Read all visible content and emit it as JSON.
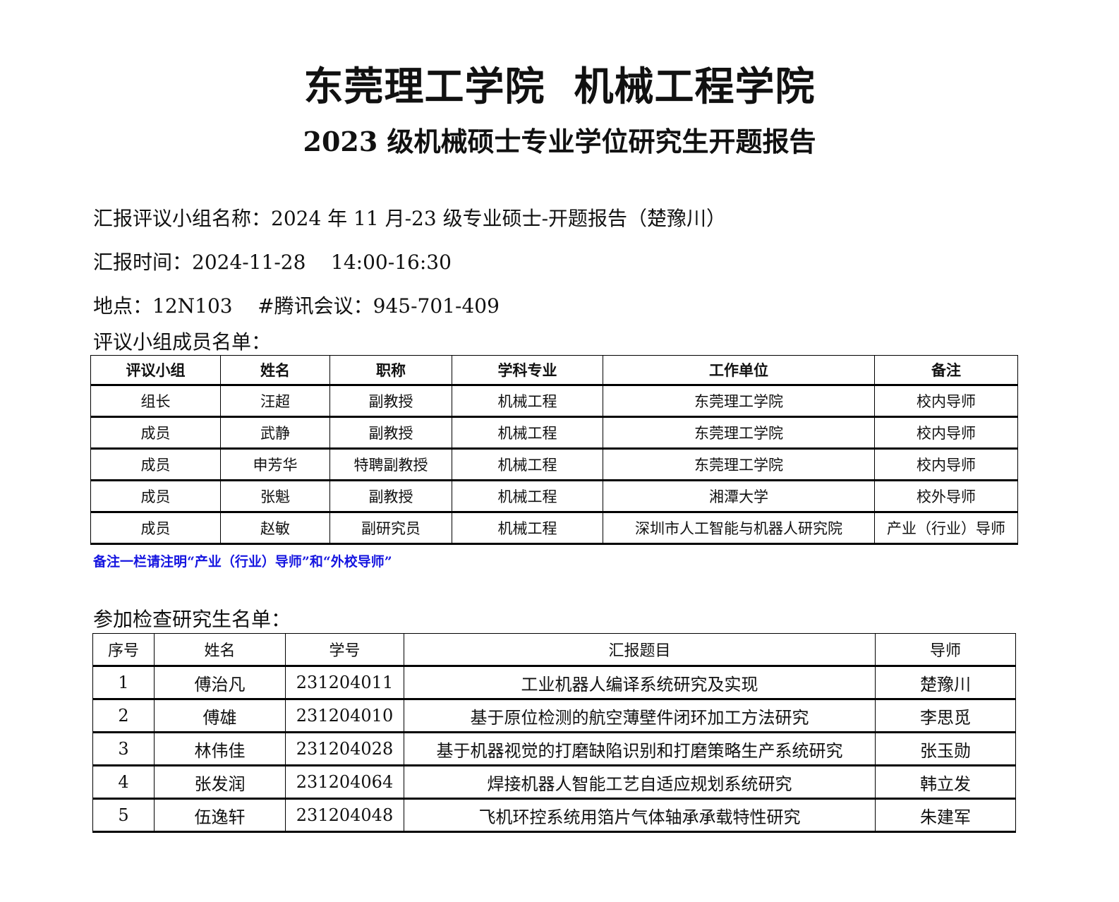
{
  "header": {
    "title": "东莞理工学院  机械工程学院",
    "subtitle": "2023 级机械硕士专业学位研究生开题报告"
  },
  "info": {
    "group_name": "汇报评议小组名称：2024 年 11 月-23 级专业硕士-开题报告（楚豫川）",
    "time": "汇报时间：2024-11-28    14:00-16:30",
    "location": "地点：12N103    #腾讯会议：945-701-409",
    "panel_heading": "评议小组成员名单：",
    "note": "备注一栏请注明“产业（行业）导师”和“外校导师”",
    "students_heading": "参加检查研究生名单："
  },
  "panel": {
    "headers": [
      "评议小组",
      "姓名",
      "职称",
      "学科专业",
      "工作单位",
      "备注"
    ],
    "rows": [
      [
        "组长",
        "汪超",
        "副教授",
        "机械工程",
        "东莞理工学院",
        "校内导师"
      ],
      [
        "成员",
        "武静",
        "副教授",
        "机械工程",
        "东莞理工学院",
        "校内导师"
      ],
      [
        "成员",
        "申芳华",
        "特聘副教授",
        "机械工程",
        "东莞理工学院",
        "校内导师"
      ],
      [
        "成员",
        "张魁",
        "副教授",
        "机械工程",
        "湘潭大学",
        "校外导师"
      ],
      [
        "成员",
        "赵敏",
        "副研究员",
        "机械工程",
        "深圳市人工智能与机器人研究院",
        "产业（行业）导师"
      ]
    ]
  },
  "students": {
    "headers": [
      "序号",
      "姓名",
      "学号",
      "汇报题目",
      "导师"
    ],
    "rows": [
      [
        "1",
        "傅治凡",
        "231204011",
        "工业机器人编译系统研究及实现",
        "楚豫川"
      ],
      [
        "2",
        "傅雄",
        "231204010",
        "基于原位检测的航空薄壁件闭环加工方法研究",
        "李思觅"
      ],
      [
        "3",
        "林伟佳",
        "231204028",
        "基于机器视觉的打磨缺陷识别和打磨策略生产系统研究",
        "张玉勋"
      ],
      [
        "4",
        "张发润",
        "231204064",
        "焊接机器人智能工艺自适应规划系统研究",
        "韩立发"
      ],
      [
        "5",
        "伍逸轩",
        "231204048",
        "飞机环控系统用箔片气体轴承承载特性研究",
        "朱建军"
      ]
    ]
  },
  "colors": {
    "note": "#1515e0"
  }
}
